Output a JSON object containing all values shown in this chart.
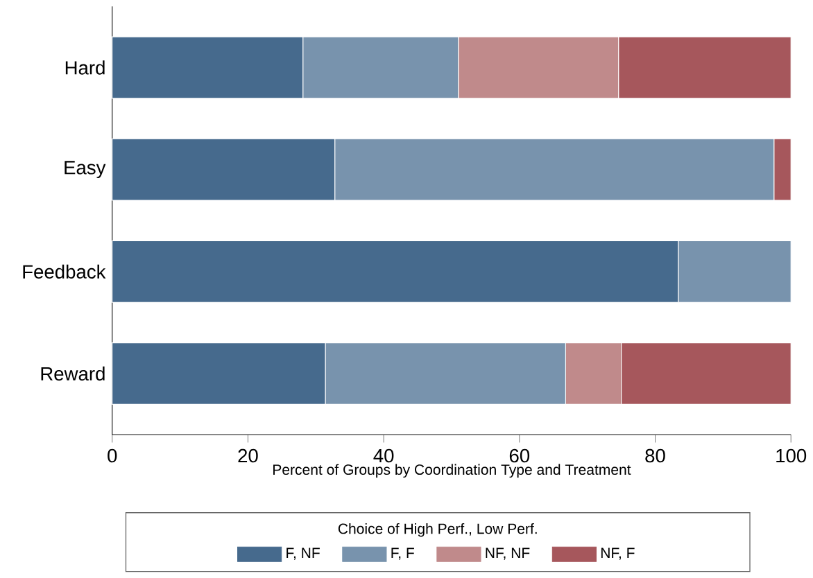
{
  "chart_data": {
    "type": "bar",
    "orientation": "horizontal",
    "stacked": true,
    "categories": [
      "Hard",
      "Easy",
      "Feedback",
      "Reward"
    ],
    "xlabel": "Percent of Groups by Coordination Type and Treatment",
    "legend_title": "Choice of High Perf., Low Perf.",
    "xlim": [
      0,
      100
    ],
    "xticks": [
      0,
      20,
      40,
      60,
      80,
      100
    ],
    "legend": "bottom",
    "series": [
      {
        "name": "F, NF",
        "color": "#466a8d",
        "values": [
          28.1,
          32.8,
          83.4,
          31.4
        ]
      },
      {
        "name": "F, F",
        "color": "#7893ad",
        "values": [
          22.9,
          64.7,
          16.6,
          35.4
        ]
      },
      {
        "name": "NF, NF",
        "color": "#c08a8b",
        "values": [
          23.6,
          0,
          0,
          8.2
        ]
      },
      {
        "name": "NF, F",
        "color": "#a6575c",
        "values": [
          25.4,
          2.5,
          0,
          25.0
        ]
      }
    ]
  }
}
